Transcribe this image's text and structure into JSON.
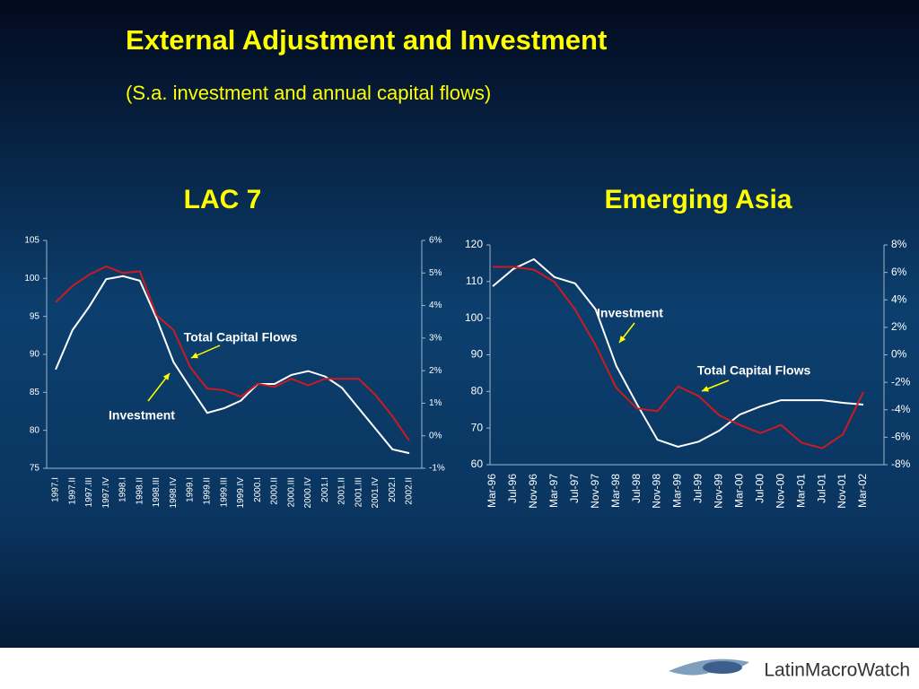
{
  "title": "External Adjustment and Investment",
  "subtitle": "(S.a. investment and annual capital flows)",
  "logo": "LatinMacroWatch",
  "chart_data": [
    {
      "type": "line",
      "title": "LAC 7",
      "categories": [
        "1997.I",
        "1997.II",
        "1997.III",
        "1997.IV",
        "1998.I",
        "1998.II",
        "1998.III",
        "1998.IV",
        "1999.I",
        "1999.II",
        "1999.III",
        "1999.IV",
        "2000.I",
        "2000.II",
        "2000.III",
        "2000.IV",
        "2001.I",
        "2001.II",
        "2001.III",
        "2001.IV",
        "2002.I",
        "2002.II"
      ],
      "series": [
        {
          "name": "Investment",
          "color": "#ffffff",
          "values": [
            88,
            93.2,
            96.3,
            99.9,
            100.3,
            99.7,
            94.7,
            89,
            85.6,
            82.3,
            82.9,
            83.9,
            86.1,
            86.1,
            87.3,
            87.8,
            87.1,
            85.6,
            82.9,
            80.2,
            77.5,
            77
          ]
        },
        {
          "name": "Total Capital Flows",
          "color": "#cc1a22",
          "axis": "y2",
          "values": [
            4.1,
            4.6,
            4.95,
            5.2,
            5.0,
            5.05,
            3.7,
            3.25,
            2.1,
            1.45,
            1.4,
            1.2,
            1.6,
            1.5,
            1.75,
            1.55,
            1.75,
            1.75,
            1.75,
            1.25,
            0.6,
            -0.15
          ]
        }
      ],
      "ylim": [
        75,
        105
      ],
      "yticks": [
        75,
        80,
        85,
        90,
        95,
        100,
        105
      ],
      "y2lim": [
        -1,
        6
      ],
      "y2ticks": [
        {
          "value": -1,
          "label": "-1%"
        },
        {
          "value": 0,
          "label": "0%"
        },
        {
          "value": 1,
          "label": "1%"
        },
        {
          "value": 2,
          "label": "2%"
        },
        {
          "value": 3,
          "label": "3%"
        },
        {
          "value": 4,
          "label": "4%"
        },
        {
          "value": 5,
          "label": "5%"
        },
        {
          "value": 6,
          "label": "6%"
        }
      ],
      "grid": false
    },
    {
      "type": "line",
      "title": "Emerging Asia",
      "categories": [
        "Mar-96",
        "Jul-96",
        "Nov-96",
        "Mar-97",
        "Jul-97",
        "Nov-97",
        "Mar-98",
        "Jul-98",
        "Nov-98",
        "Mar-99",
        "Jul-99",
        "Nov-99",
        "Mar-00",
        "Jul-00",
        "Nov-00",
        "Mar-01",
        "Jul-01",
        "Nov-01",
        "Mar-02"
      ],
      "series": [
        {
          "name": "Investment",
          "color": "#ffffff",
          "values": [
            108.7,
            113.4,
            116.1,
            111.2,
            109.5,
            102.4,
            87,
            76.6,
            66.8,
            64.9,
            66.3,
            69.3,
            73.7,
            75.9,
            77.6,
            77.6,
            77.6,
            76.9,
            76.4
          ]
        },
        {
          "name": "Total Capital Flows",
          "color": "#cc1a22",
          "axis": "y2",
          "values": [
            6.4,
            6.4,
            6.2,
            5.3,
            3.3,
            0.7,
            -2.4,
            -3.9,
            -4.1,
            -2.3,
            -3,
            -4.4,
            -5.1,
            -5.7,
            -5.1,
            -6.4,
            -6.8,
            -5.8,
            -2.7
          ]
        }
      ],
      "ylim": [
        60,
        120
      ],
      "yticks": [
        60,
        70,
        80,
        90,
        100,
        110,
        120
      ],
      "y2lim": [
        -8,
        8
      ],
      "y2ticks": [
        {
          "value": -8,
          "label": "-8%"
        },
        {
          "value": -6,
          "label": "-6%"
        },
        {
          "value": -4,
          "label": "-4%"
        },
        {
          "value": -2,
          "label": "-2%"
        },
        {
          "value": 0,
          "label": "0%"
        },
        {
          "value": 2,
          "label": "2%"
        },
        {
          "value": 4,
          "label": "4%"
        },
        {
          "value": 6,
          "label": "6%"
        },
        {
          "value": 8,
          "label": "8%"
        }
      ],
      "grid": false
    }
  ]
}
